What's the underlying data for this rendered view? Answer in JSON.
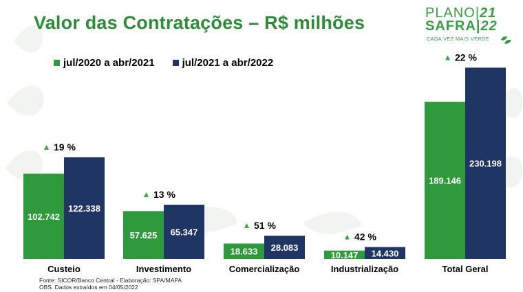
{
  "title": "Valor das Contratações – R$ milhões",
  "logo": {
    "line1": "PLANO",
    "year1": "21",
    "line2": "SAFRA",
    "year2": "22",
    "tagline": "CADA VEZ MAIS VERDE",
    "color": "#3a9a46",
    "icon": "leaf-icon"
  },
  "chart_data": {
    "type": "bar",
    "categories": [
      "Custeio",
      "Investimento",
      "Comercialização",
      "Industrialização",
      "Total Geral"
    ],
    "series": [
      {
        "name": "jul/2020 a abr/2021",
        "color": "#2e9a3c",
        "values": [
          102742,
          57625,
          18633,
          10147,
          189146
        ],
        "labels": [
          "102.742",
          "57.625",
          "18.633",
          "10.147",
          "189.146"
        ]
      },
      {
        "name": "jul/2021 a abr/2022",
        "color": "#1f3564",
        "values": [
          122338,
          65347,
          28083,
          14430,
          230198
        ],
        "labels": [
          "122.338",
          "65.347",
          "28.083",
          "14.430",
          "230.198"
        ]
      }
    ],
    "growth": [
      "19 %",
      "13 %",
      "51 %",
      "42 %",
      "22 %"
    ],
    "growth_icon": "triangle-up-icon",
    "growth_color": "#3aa64a",
    "legend": "top-left",
    "grid": false
  },
  "footnotes": [
    "Fonte: SICOR/Banco Central - Elaboração: SPA/MAPA",
    "OBS. Dados extraídos em 04/05/2022"
  ]
}
